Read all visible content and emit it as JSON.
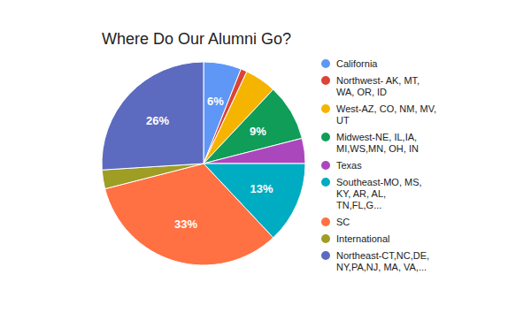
{
  "chart_data": {
    "type": "pie",
    "title": "Where Do Our Alumni Go?",
    "categories": [
      "California",
      "Northwest- AK, MT, WA, OR, ID",
      "West-AZ, CO, NM, MV, UT",
      "Midwest-NE, IL,IA, MI,WS,MN, OH, IN",
      "Texas",
      "Southeast-MO, MS, KY, AR, AL, TN,FL,G...",
      "SC",
      "International",
      "Northeast-CT,NC,DE, NY,PA,NJ, MA, VA,..."
    ],
    "values": [
      6,
      1,
      5,
      9,
      4,
      13,
      33,
      3,
      26
    ],
    "value_labels": [
      "6%",
      null,
      null,
      "9%",
      null,
      "13%",
      "33%",
      null,
      "26%"
    ],
    "colors": [
      "#5e97f6",
      "#db4437",
      "#f4b400",
      "#0f9d58",
      "#ab47bc",
      "#00acc1",
      "#ff7043",
      "#9e9d24",
      "#5c6bc0"
    ],
    "data_labels": true,
    "legend": "right"
  }
}
